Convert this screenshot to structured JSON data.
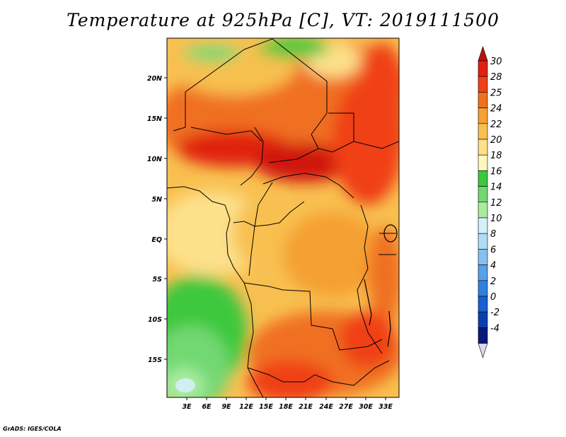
{
  "title": "Temperature at 925hPa [C], VT: 2019111500",
  "credit": "GrADS: IGES/COLA",
  "map": {
    "lat_labels": [
      "20N",
      "15N",
      "10N",
      "5N",
      "EQ",
      "5S",
      "10S",
      "15S"
    ],
    "lon_labels": [
      "3E",
      "6E",
      "9E",
      "12E",
      "15E",
      "18E",
      "21E",
      "24E",
      "27E",
      "30E",
      "33E"
    ]
  },
  "colorbar": {
    "labels": [
      "30",
      "28",
      "25",
      "24",
      "22",
      "20",
      "18",
      "16",
      "14",
      "12",
      "10",
      "8",
      "6",
      "4",
      "2",
      "0",
      "-2",
      "-4"
    ],
    "colors": {
      "c30": "#e02010",
      "c28": "#f04018",
      "c25": "#f07020",
      "c24": "#f5a030",
      "c22": "#f8c050",
      "c20": "#fde08a",
      "c18": "#fef8c0",
      "c16": "#3cc83c",
      "c14": "#72d872",
      "c12": "#a8eca0",
      "c10": "#d4f0f8",
      "c8": "#b0dcf8",
      "c6": "#86c0f0",
      "c4": "#58a0e8",
      "c2": "#3080e0",
      "c0": "#1860d0",
      "cm2": "#0840b0",
      "cm4": "#081878",
      "under": "#d8d8f0",
      "over": "#c01008"
    }
  }
}
